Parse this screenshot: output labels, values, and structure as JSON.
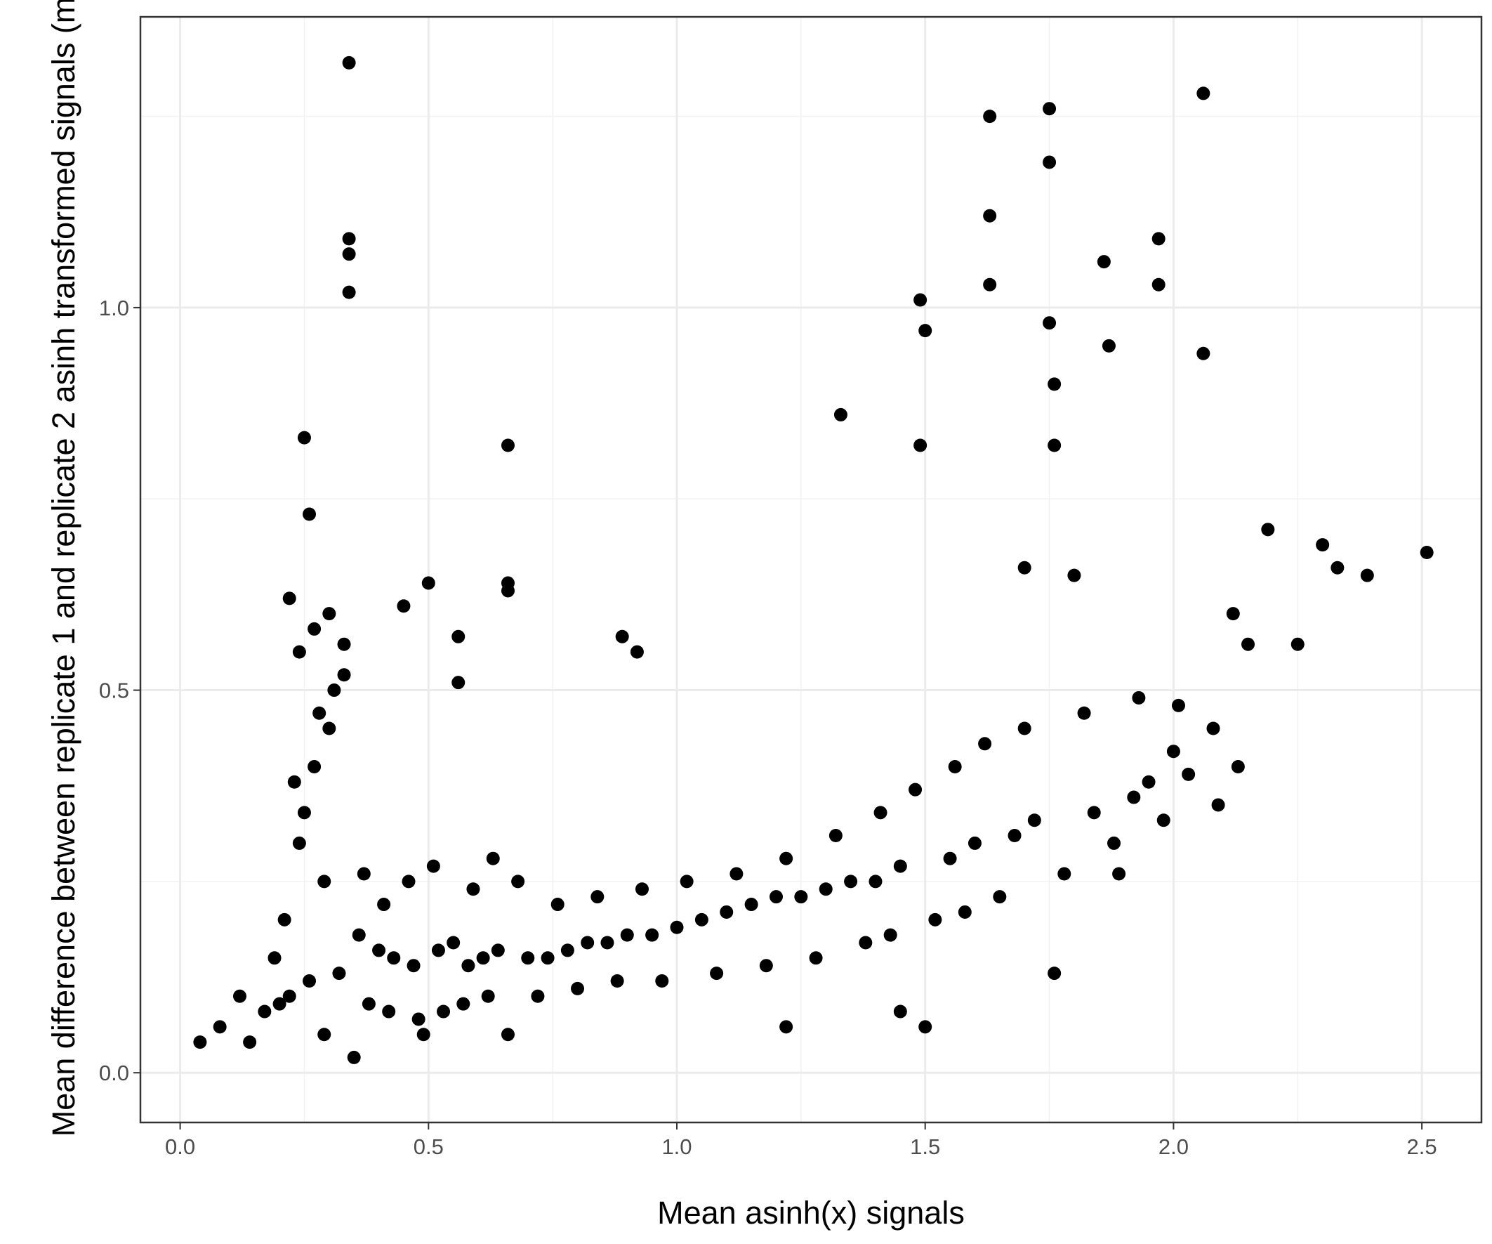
{
  "chart_data": {
    "type": "scatter",
    "title": "",
    "xlabel": "Mean asinh(x) signals",
    "ylabel": "Mean difference between replicate 1 and replicate 2 asinh transformed signals (m",
    "xlim": [
      -0.08,
      2.62
    ],
    "ylim": [
      -0.065,
      1.38
    ],
    "x_ticks": [
      "0.0",
      "0.5",
      "1.0",
      "1.5",
      "2.0",
      "2.5"
    ],
    "x_tick_values": [
      0.0,
      0.5,
      1.0,
      1.5,
      2.0,
      2.5
    ],
    "y_ticks": [
      "0.0",
      "0.5",
      "1.0"
    ],
    "y_tick_values": [
      0.0,
      0.5,
      1.0
    ],
    "grid": true,
    "point_color": "#000000",
    "x": [
      0.34,
      0.34,
      0.34,
      0.34,
      0.25,
      0.26,
      0.45,
      0.5,
      0.66,
      0.66,
      0.66,
      0.56,
      0.56,
      0.89,
      0.92,
      1.33,
      1.49,
      1.5,
      1.5,
      1.63,
      1.63,
      1.63,
      1.75,
      1.75,
      1.75,
      1.76,
      1.76,
      1.86,
      1.87,
      1.97,
      1.97,
      2.06,
      2.06,
      2.51,
      2.39,
      2.33,
      2.3,
      2.19,
      2.25,
      1.49,
      1.76,
      0.04,
      0.14,
      0.29,
      0.49,
      0.66,
      1.22,
      1.45,
      1.89,
      2.0,
      2.09,
      2.12,
      2.15,
      1.7,
      1.8,
      0.21,
      0.24,
      0.27,
      0.3,
      0.33,
      0.23,
      0.28,
      0.31,
      0.19,
      0.36,
      0.4,
      0.43,
      0.47,
      0.52,
      0.55,
      0.58,
      0.61,
      0.64,
      0.7,
      0.74,
      0.78,
      0.82,
      0.86,
      0.9,
      0.95,
      1.0,
      1.05,
      1.1,
      1.15,
      1.2,
      1.25,
      1.3,
      1.35,
      1.4,
      1.45,
      1.55,
      1.6,
      1.68,
      1.72,
      1.84,
      1.92,
      1.95,
      2.03,
      0.22,
      0.26,
      0.32,
      0.29,
      0.25,
      0.38,
      0.42,
      0.48,
      0.53,
      0.57,
      0.62,
      0.72,
      0.8,
      0.88,
      0.97,
      1.08,
      1.18,
      1.28,
      1.38,
      1.43,
      1.52,
      1.58,
      1.65,
      1.78,
      1.88,
      1.98,
      0.17,
      0.2,
      0.12,
      0.08,
      0.35,
      0.37,
      0.41,
      0.46,
      0.51,
      0.59,
      0.63,
      0.68,
      0.76,
      0.84,
      0.93,
      1.02,
      1.12,
      1.22,
      1.32,
      1.41,
      1.48,
      1.56,
      1.62,
      1.7,
      1.82,
      1.93,
      2.01,
      2.08,
      2.13,
      0.24,
      0.27,
      0.3,
      0.22,
      0.33
    ],
    "y": [
      1.32,
      1.09,
      1.07,
      1.02,
      0.83,
      0.73,
      0.61,
      0.64,
      0.82,
      0.64,
      0.63,
      0.57,
      0.51,
      0.57,
      0.55,
      0.86,
      1.01,
      0.97,
      0.06,
      1.25,
      1.12,
      1.03,
      1.26,
      1.19,
      0.98,
      0.13,
      0.9,
      1.06,
      0.95,
      1.09,
      1.03,
      1.28,
      0.94,
      0.68,
      0.65,
      0.66,
      0.69,
      0.71,
      0.56,
      0.82,
      0.82,
      0.04,
      0.04,
      0.05,
      0.05,
      0.05,
      0.06,
      0.08,
      0.26,
      0.42,
      0.35,
      0.6,
      0.56,
      0.66,
      0.65,
      0.2,
      0.3,
      0.4,
      0.45,
      0.52,
      0.38,
      0.47,
      0.5,
      0.15,
      0.18,
      0.16,
      0.15,
      0.14,
      0.16,
      0.17,
      0.14,
      0.15,
      0.16,
      0.15,
      0.15,
      0.16,
      0.17,
      0.17,
      0.18,
      0.18,
      0.19,
      0.2,
      0.21,
      0.22,
      0.23,
      0.23,
      0.24,
      0.25,
      0.25,
      0.27,
      0.28,
      0.3,
      0.31,
      0.33,
      0.34,
      0.36,
      0.38,
      0.39,
      0.1,
      0.12,
      0.13,
      0.25,
      0.34,
      0.09,
      0.08,
      0.07,
      0.08,
      0.09,
      0.1,
      0.1,
      0.11,
      0.12,
      0.12,
      0.13,
      0.14,
      0.15,
      0.17,
      0.18,
      0.2,
      0.21,
      0.23,
      0.26,
      0.3,
      0.33,
      0.08,
      0.09,
      0.1,
      0.06,
      0.02,
      0.26,
      0.22,
      0.25,
      0.27,
      0.24,
      0.28,
      0.25,
      0.22,
      0.23,
      0.24,
      0.25,
      0.26,
      0.28,
      0.31,
      0.34,
      0.37,
      0.4,
      0.43,
      0.45,
      0.47,
      0.49,
      0.48,
      0.45,
      0.4,
      0.55,
      0.58,
      0.6,
      0.62,
      0.56
    ]
  }
}
